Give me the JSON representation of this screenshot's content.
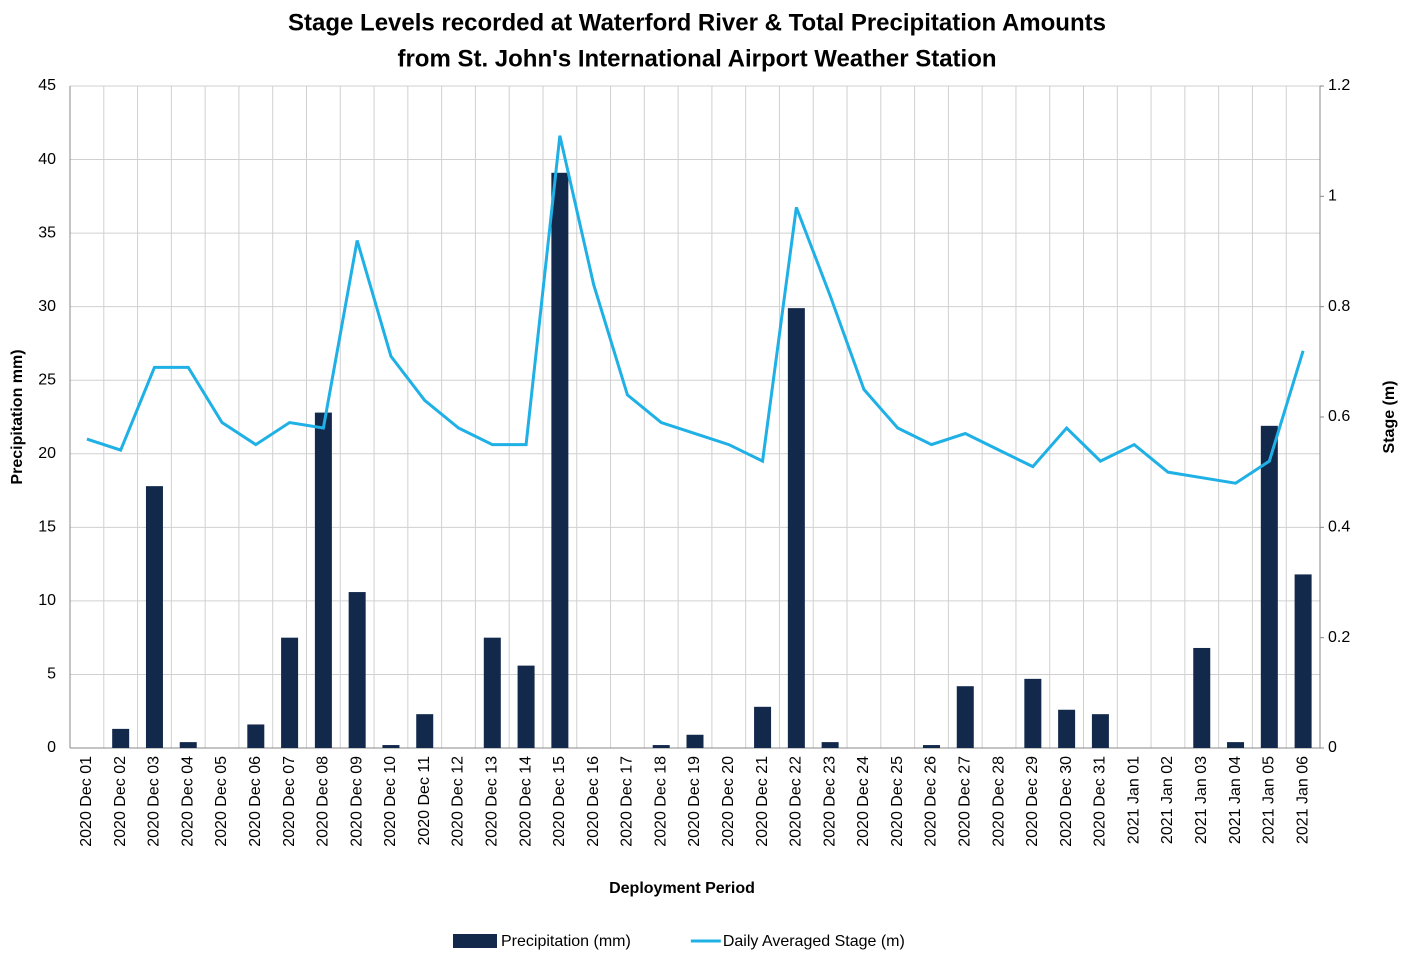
{
  "chart_data": {
    "type": "bar",
    "title": [
      "Stage Levels recorded at Waterford River & Total Precipitation Amounts",
      "from St. John's International Airport Weather Station"
    ],
    "x_label": "Deployment Period",
    "y_label": "Precipitation mm)",
    "y2_label": "Stage (m)",
    "categories": [
      "2020 Dec 01",
      "2020 Dec 02",
      "2020 Dec 03",
      "2020 Dec 04",
      "2020 Dec 05",
      "2020 Dec 06",
      "2020 Dec 07",
      "2020 Dec 08",
      "2020 Dec 09",
      "2020 Dec 10",
      "2020 Dec 11",
      "2020 Dec 12",
      "2020 Dec 13",
      "2020 Dec 14",
      "2020 Dec 15",
      "2020 Dec 16",
      "2020 Dec 17",
      "2020 Dec 18",
      "2020 Dec 19",
      "2020 Dec 20",
      "2020 Dec 21",
      "2020 Dec 22",
      "2020 Dec 23",
      "2020 Dec 24",
      "2020 Dec 25",
      "2020 Dec 26",
      "2020 Dec 27",
      "2020 Dec 28",
      "2020 Dec 29",
      "2020 Dec 30",
      "2020 Dec 31",
      "2021 Jan 01",
      "2021 Jan 02",
      "2021 Jan 03",
      "2021 Jan 04",
      "2021 Jan 05",
      "2021 Jan 06"
    ],
    "series": [
      {
        "name": "Precipitation (mm)",
        "type": "bar",
        "color": "#13294b",
        "values": [
          0,
          1.3,
          17.8,
          0.4,
          0,
          1.6,
          7.5,
          22.8,
          10.6,
          0.2,
          2.3,
          0,
          7.5,
          5.6,
          39.1,
          0,
          0,
          0.2,
          0.9,
          0,
          2.8,
          29.9,
          0.4,
          0,
          0,
          0.2,
          4.2,
          0,
          4.7,
          2.6,
          2.3,
          0,
          0,
          6.8,
          0.4,
          21.9,
          11.8
        ]
      },
      {
        "name": "Daily Averaged Stage (m)",
        "type": "line",
        "axis": "y2",
        "color": "#1fb0e6",
        "values": [
          0.56,
          0.54,
          0.69,
          0.69,
          0.59,
          0.55,
          0.59,
          0.58,
          0.92,
          0.71,
          0.63,
          0.58,
          0.55,
          0.55,
          1.11,
          0.84,
          0.64,
          0.59,
          0.57,
          0.55,
          0.52,
          0.98,
          0.82,
          0.65,
          0.58,
          0.55,
          0.57,
          0.54,
          0.51,
          0.58,
          0.52,
          0.55,
          0.5,
          0.49,
          0.48,
          0.52,
          0.72
        ]
      }
    ],
    "ylim": [
      0,
      45
    ],
    "yticks": [
      0,
      5,
      10,
      15,
      20,
      25,
      30,
      35,
      40,
      45
    ],
    "y2lim": [
      0,
      1.2
    ],
    "y2ticks": [
      0,
      0.2,
      0.4,
      0.6,
      0.8,
      1,
      1.2
    ],
    "grid": true,
    "legend": "bottom"
  }
}
